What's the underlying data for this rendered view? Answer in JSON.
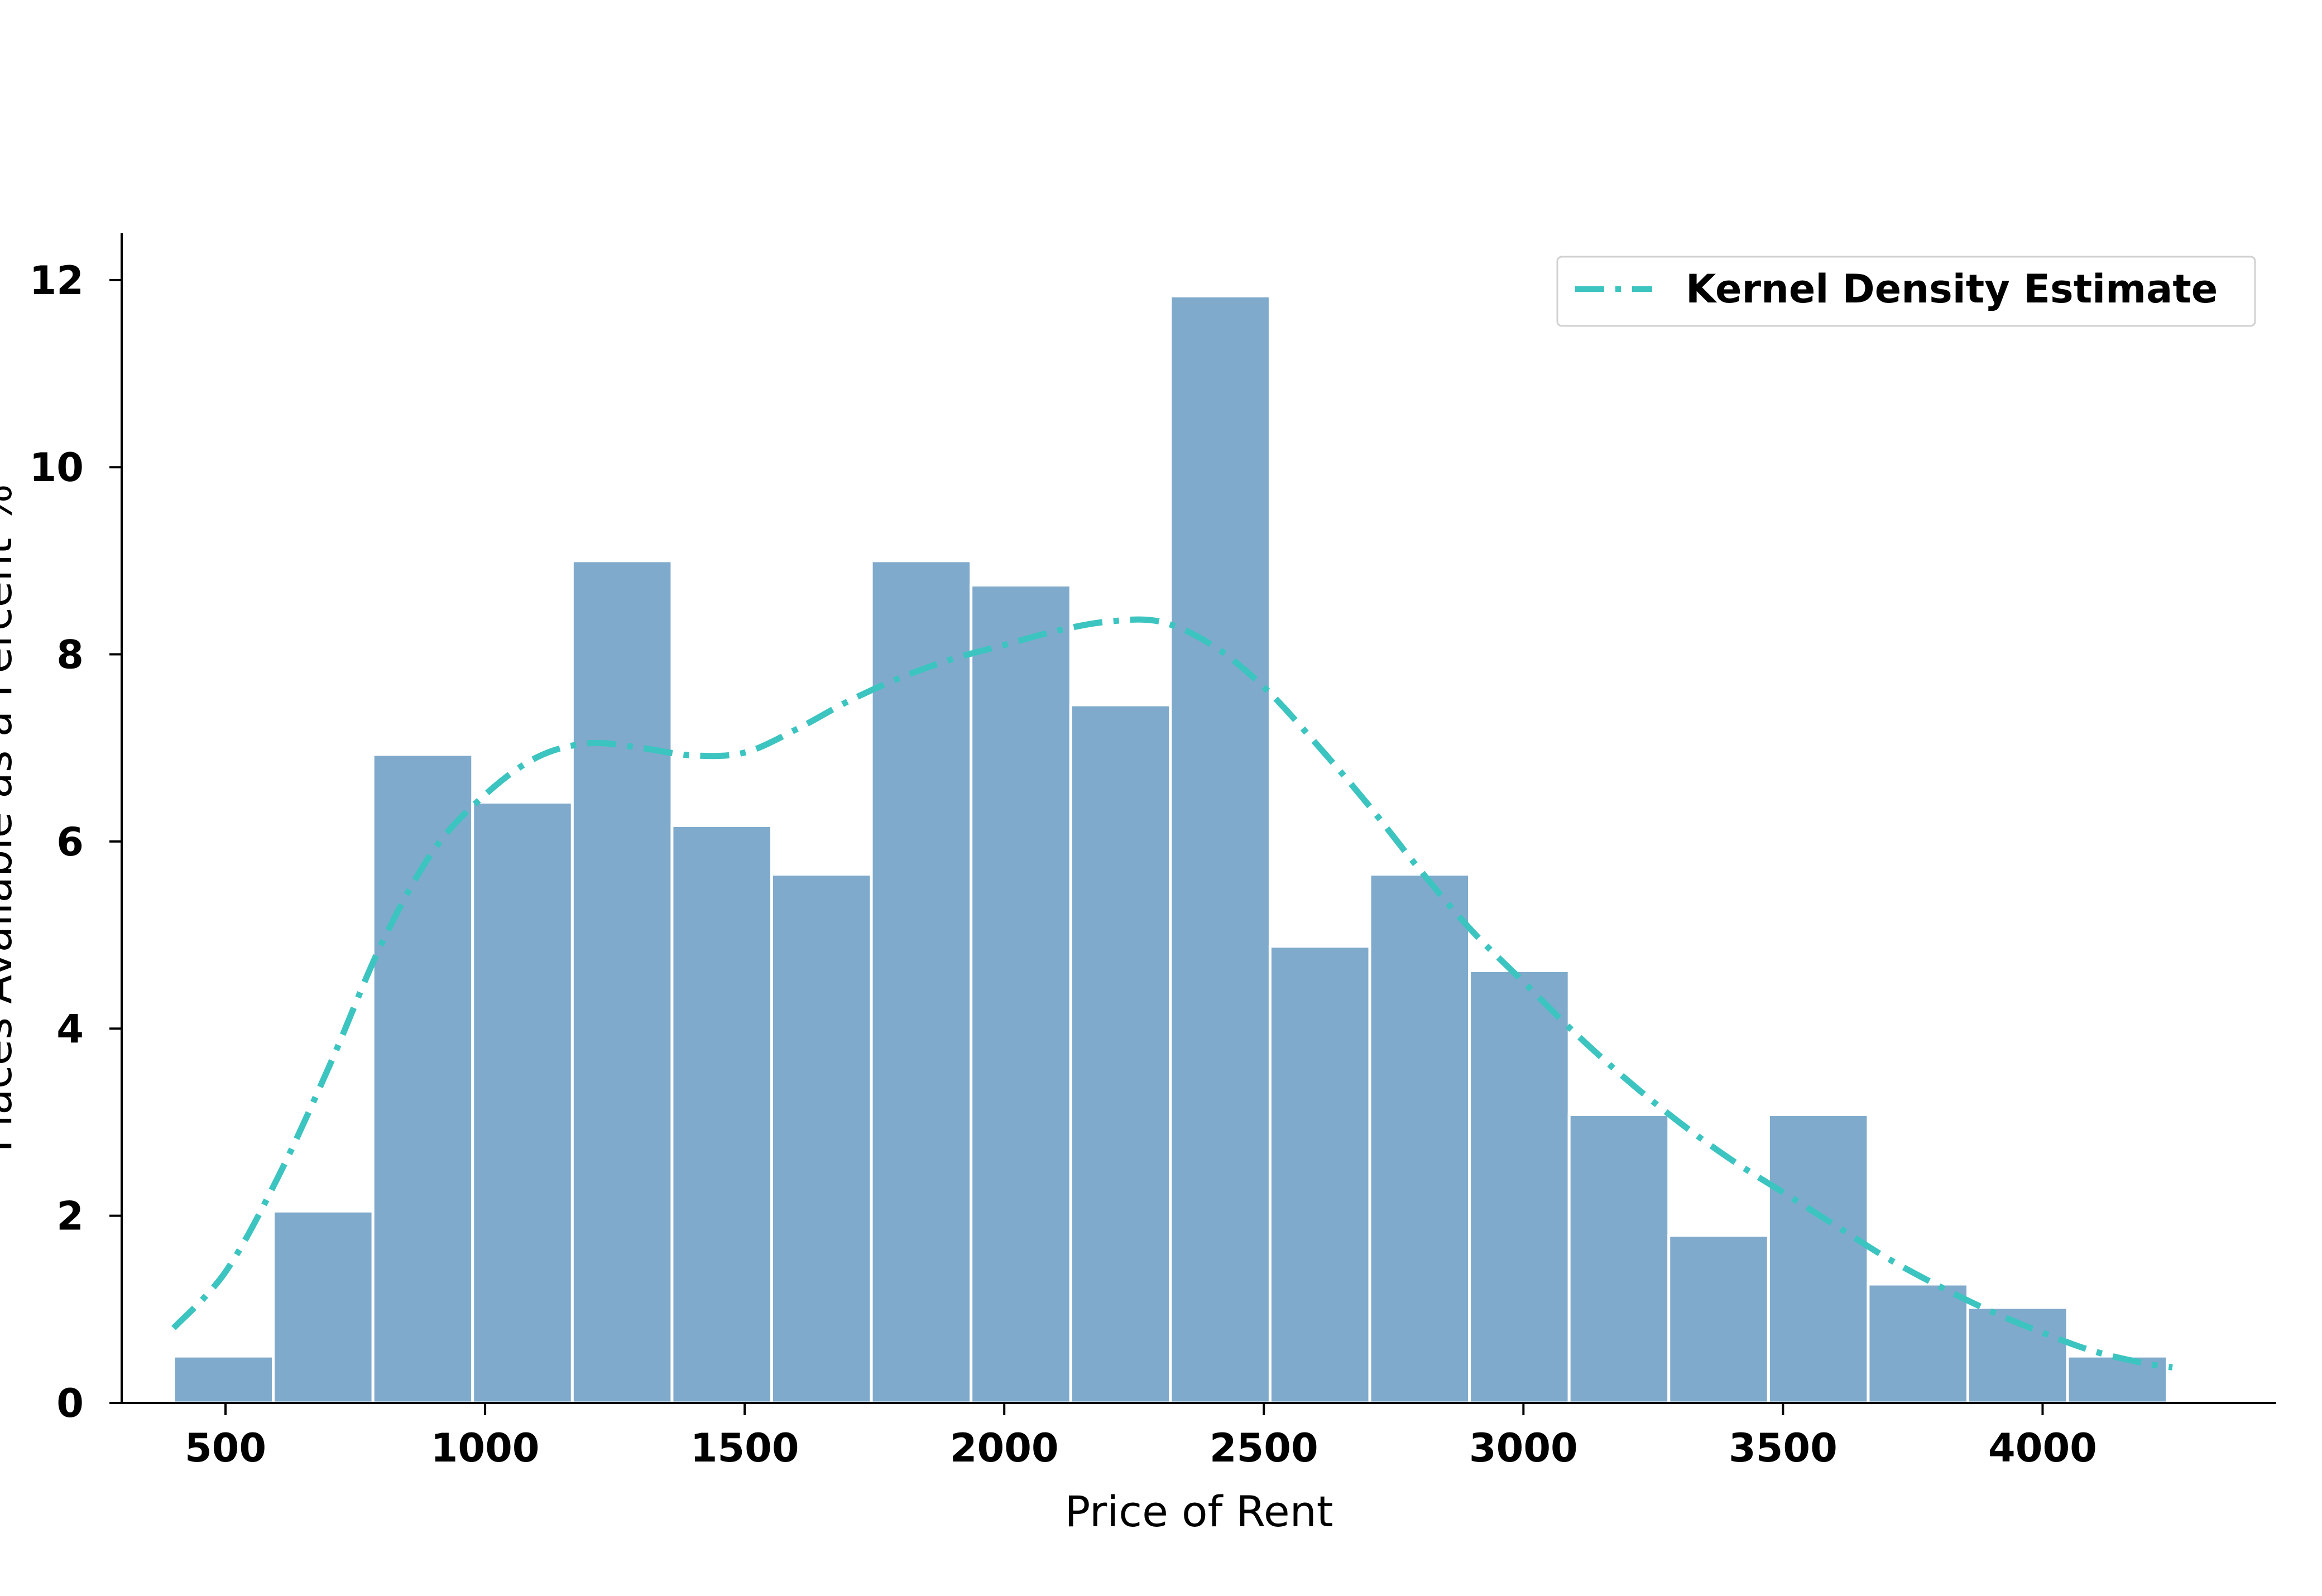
{
  "chart_data": {
    "type": "bar",
    "title": "",
    "xlabel": "Price of Rent",
    "ylabel": "Places Available as a Percent %",
    "xlim": [
      300,
      4450
    ],
    "ylim": [
      0,
      12.5
    ],
    "x_ticks": [
      500,
      1000,
      1500,
      2000,
      2500,
      3000,
      3500,
      4000
    ],
    "y_ticks": [
      0,
      2,
      4,
      6,
      8,
      10,
      12
    ],
    "grid": false,
    "legend_placement": "top-right",
    "bar_color": "#7faacc",
    "bins": [
      {
        "x0": 400,
        "x1": 592,
        "value": 0.5
      },
      {
        "x0": 592,
        "x1": 784,
        "value": 2.05
      },
      {
        "x0": 784,
        "x1": 976,
        "value": 6.93
      },
      {
        "x0": 976,
        "x1": 1168,
        "value": 6.42
      },
      {
        "x0": 1168,
        "x1": 1360,
        "value": 9.0
      },
      {
        "x0": 1360,
        "x1": 1552,
        "value": 6.17
      },
      {
        "x0": 1552,
        "x1": 1744,
        "value": 5.65
      },
      {
        "x0": 1744,
        "x1": 1936,
        "value": 9.0
      },
      {
        "x0": 1936,
        "x1": 2128,
        "value": 8.74
      },
      {
        "x0": 2128,
        "x1": 2320,
        "value": 7.46
      },
      {
        "x0": 2320,
        "x1": 2512,
        "value": 11.83
      },
      {
        "x0": 2512,
        "x1": 2704,
        "value": 4.88
      },
      {
        "x0": 2704,
        "x1": 2896,
        "value": 5.65
      },
      {
        "x0": 2896,
        "x1": 3088,
        "value": 4.62
      },
      {
        "x0": 3088,
        "x1": 3280,
        "value": 3.08
      },
      {
        "x0": 3280,
        "x1": 3472,
        "value": 1.79
      },
      {
        "x0": 3472,
        "x1": 3664,
        "value": 3.08
      },
      {
        "x0": 3664,
        "x1": 3856,
        "value": 1.27
      },
      {
        "x0": 3856,
        "x1": 4048,
        "value": 1.02
      },
      {
        "x0": 4048,
        "x1": 4240,
        "value": 0.5
      }
    ],
    "series": [
      {
        "name": "Kernel Density Estimate",
        "type": "line",
        "color": "#3cc4c0",
        "dash": "dash-dot",
        "x": [
          400,
          500,
          600,
          700,
          800,
          900,
          1000,
          1100,
          1200,
          1300,
          1400,
          1500,
          1600,
          1700,
          1800,
          1900,
          2000,
          2100,
          2200,
          2300,
          2400,
          2500,
          2600,
          2700,
          2800,
          2900,
          3000,
          3100,
          3200,
          3300,
          3400,
          3500,
          3600,
          3700,
          3800,
          3900,
          4000,
          4100,
          4200,
          4250
        ],
        "y": [
          0.8,
          1.4,
          2.4,
          3.6,
          4.9,
          5.9,
          6.5,
          6.9,
          7.05,
          7.0,
          6.92,
          6.95,
          7.2,
          7.5,
          7.75,
          7.95,
          8.1,
          8.25,
          8.35,
          8.35,
          8.1,
          7.65,
          7.05,
          6.4,
          5.7,
          5.05,
          4.5,
          3.95,
          3.45,
          3.0,
          2.6,
          2.25,
          1.9,
          1.55,
          1.25,
          0.98,
          0.75,
          0.55,
          0.42,
          0.38
        ]
      }
    ]
  }
}
